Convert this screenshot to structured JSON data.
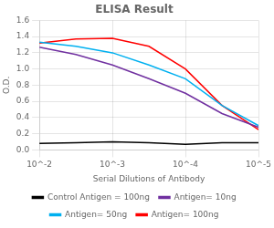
{
  "chart_data": {
    "type": "line",
    "title": "ELISA Result",
    "xlabel": "Serial Dilutions of Antibody",
    "ylabel": "O.D.",
    "x": [
      0.01,
      0.003162,
      0.001,
      0.000316,
      0.0001,
      3.16e-05,
      1e-05
    ],
    "series": [
      {
        "name": "Control Antigen = 100ng",
        "color": "#000000",
        "values": [
          0.08,
          0.09,
          0.1,
          0.09,
          0.07,
          0.09,
          0.09
        ]
      },
      {
        "name": "Antigen= 10ng",
        "color": "#7030a0",
        "values": [
          1.27,
          1.18,
          1.05,
          0.88,
          0.7,
          0.45,
          0.28
        ]
      },
      {
        "name": "Antigen= 50ng",
        "color": "#00b0f0",
        "values": [
          1.33,
          1.28,
          1.2,
          1.05,
          0.88,
          0.55,
          0.3
        ]
      },
      {
        "name": "Antigen= 100ng",
        "color": "#ff0000",
        "values": [
          1.32,
          1.37,
          1.38,
          1.28,
          1.0,
          0.55,
          0.25
        ]
      }
    ],
    "xlim": [
      0.01,
      1e-05
    ],
    "xticks": [
      {
        "value": 0.01,
        "label": "10^-2"
      },
      {
        "value": 0.001,
        "label": "10^-3"
      },
      {
        "value": 0.0001,
        "label": "10^-4"
      },
      {
        "value": 1e-05,
        "label": "10^-5"
      }
    ],
    "ylim": [
      0,
      1.6
    ],
    "yticks": [
      {
        "value": 0,
        "label": "0.0"
      },
      0.2,
      0.4,
      0.6,
      0.8,
      {
        "value": 1.0,
        "label": "1.0"
      },
      1.2,
      1.4,
      1.6
    ],
    "log": "x",
    "grid": true,
    "legend": "bottom"
  }
}
